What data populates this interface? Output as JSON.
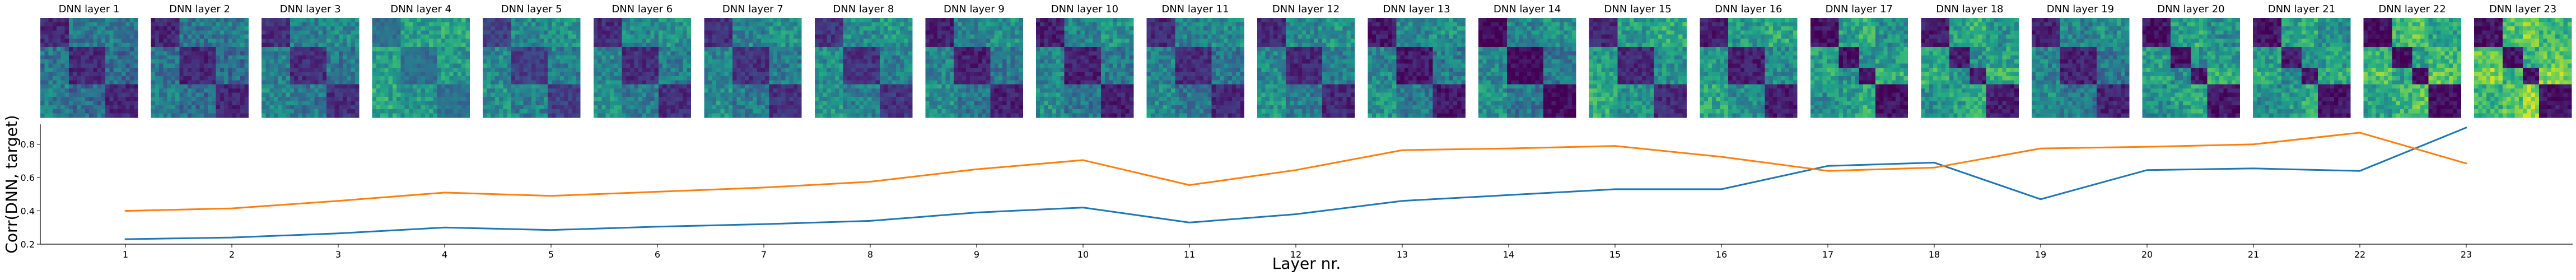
{
  "chart_data": [
    {
      "type": "heatmap",
      "panels": [
        {
          "title": "DNN layer 1",
          "contrast": 0.34,
          "bright": 0.3,
          "blocks": [
            0,
            7,
            16,
            24
          ]
        },
        {
          "title": "DNN layer 2",
          "contrast": 0.35,
          "bright": 0.3,
          "blocks": [
            0,
            7,
            16,
            24
          ]
        },
        {
          "title": "DNN layer 3",
          "contrast": 0.38,
          "bright": 0.34,
          "blocks": [
            0,
            7,
            16,
            24
          ]
        },
        {
          "title": "DNN layer 4",
          "contrast": 0.25,
          "bright": 0.5,
          "blocks": [
            0,
            7,
            16,
            24
          ]
        },
        {
          "title": "DNN layer 5",
          "contrast": 0.36,
          "bright": 0.38,
          "blocks": [
            0,
            7,
            16,
            24
          ]
        },
        {
          "title": "DNN layer 6",
          "contrast": 0.42,
          "bright": 0.36,
          "blocks": [
            0,
            7,
            16,
            24
          ]
        },
        {
          "title": "DNN layer 7",
          "contrast": 0.4,
          "bright": 0.36,
          "blocks": [
            0,
            7,
            16,
            24
          ]
        },
        {
          "title": "DNN layer 8",
          "contrast": 0.42,
          "bright": 0.38,
          "blocks": [
            0,
            7,
            16,
            24
          ]
        },
        {
          "title": "DNN layer 9",
          "contrast": 0.45,
          "bright": 0.34,
          "blocks": [
            0,
            7,
            16,
            24
          ]
        },
        {
          "title": "DNN layer 10",
          "contrast": 0.46,
          "bright": 0.34,
          "blocks": [
            0,
            7,
            16,
            24
          ]
        },
        {
          "title": "DNN layer 11",
          "contrast": 0.4,
          "bright": 0.34,
          "blocks": [
            0,
            7,
            16,
            24
          ]
        },
        {
          "title": "DNN layer 12",
          "contrast": 0.45,
          "bright": 0.36,
          "blocks": [
            0,
            7,
            16,
            24
          ]
        },
        {
          "title": "DNN layer 13",
          "contrast": 0.5,
          "bright": 0.34,
          "blocks": [
            0,
            7,
            16,
            24
          ]
        },
        {
          "title": "DNN layer 14",
          "contrast": 0.55,
          "bright": 0.32,
          "blocks": [
            0,
            7,
            16,
            24
          ]
        },
        {
          "title": "DNN layer 15",
          "contrast": 0.55,
          "bright": 0.42,
          "blocks": [
            0,
            7,
            16,
            24
          ]
        },
        {
          "title": "DNN layer 16",
          "contrast": 0.58,
          "bright": 0.4,
          "blocks": [
            0,
            7,
            16,
            24
          ]
        },
        {
          "title": "DNN layer 17",
          "contrast": 0.65,
          "bright": 0.4,
          "blocks": [
            0,
            7,
            12,
            16,
            24
          ]
        },
        {
          "title": "DNN layer 18",
          "contrast": 0.62,
          "bright": 0.42,
          "blocks": [
            0,
            7,
            12,
            16,
            24
          ]
        },
        {
          "title": "DNN layer 19",
          "contrast": 0.45,
          "bright": 0.34,
          "blocks": [
            0,
            7,
            16,
            24
          ]
        },
        {
          "title": "DNN layer 20",
          "contrast": 0.62,
          "bright": 0.4,
          "blocks": [
            0,
            7,
            12,
            16,
            24
          ]
        },
        {
          "title": "DNN layer 21",
          "contrast": 0.62,
          "bright": 0.4,
          "blocks": [
            0,
            7,
            12,
            16,
            24
          ]
        },
        {
          "title": "DNN layer 22",
          "contrast": 0.78,
          "bright": 0.46,
          "blocks": [
            0,
            7,
            12,
            16,
            24
          ]
        },
        {
          "title": "DNN layer 23",
          "contrast": 0.85,
          "bright": 0.52,
          "blocks": [
            0,
            7,
            12,
            16,
            24
          ]
        }
      ]
    },
    {
      "type": "line",
      "xlabel": "Layer nr.",
      "ylabel": "Corr(DNN, target)",
      "x": [
        1,
        2,
        3,
        4,
        5,
        6,
        7,
        8,
        9,
        10,
        11,
        12,
        13,
        14,
        15,
        16,
        17,
        18,
        19,
        20,
        21,
        22,
        23
      ],
      "xlim": [
        0.2,
        24.0
      ],
      "ylim": [
        0.2,
        0.92
      ],
      "yticks": [
        0.2,
        0.4,
        0.6,
        0.8
      ],
      "series": [
        {
          "color": "#1f77b4",
          "values": [
            0.23,
            0.24,
            0.265,
            0.3,
            0.285,
            0.305,
            0.32,
            0.34,
            0.39,
            0.42,
            0.33,
            0.38,
            0.46,
            0.495,
            0.53,
            0.53,
            0.67,
            0.69,
            0.47,
            0.645,
            0.655,
            0.64,
            0.9
          ]
        },
        {
          "color": "#ff7f0e",
          "values": [
            0.4,
            0.415,
            0.46,
            0.51,
            0.49,
            0.515,
            0.54,
            0.575,
            0.65,
            0.705,
            0.555,
            0.645,
            0.765,
            0.775,
            0.79,
            0.725,
            0.64,
            0.66,
            0.775,
            0.785,
            0.8,
            0.87,
            0.685
          ]
        }
      ]
    }
  ]
}
